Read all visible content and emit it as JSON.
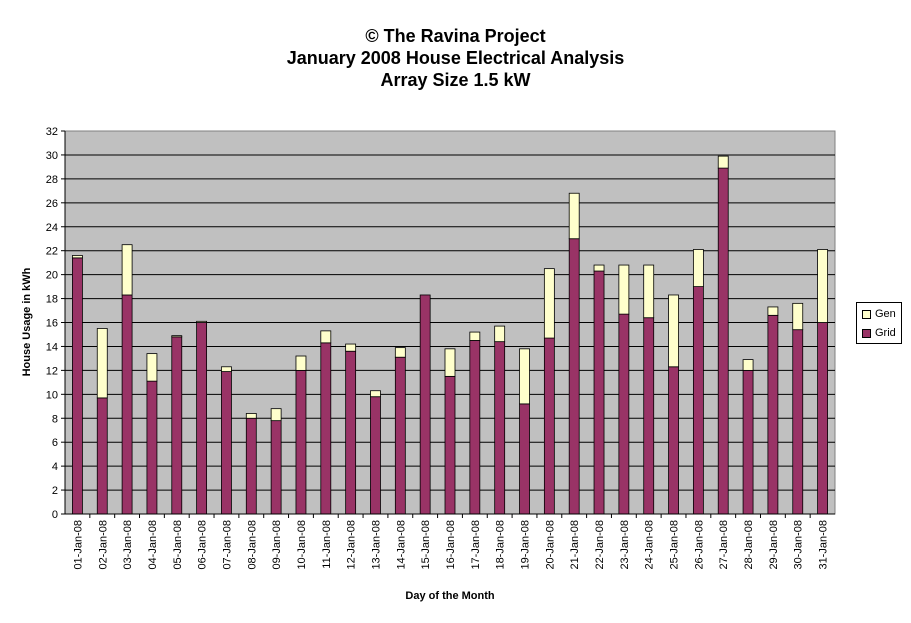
{
  "chart_data": {
    "type": "bar",
    "stacked": true,
    "title_lines": [
      "© The Ravina Project",
      "January 2008 House Electrical Analysis",
      "Array Size 1.5 kW"
    ],
    "xlabel": "Day of the Month",
    "ylabel": "House Usage in kWh",
    "ylim": [
      0,
      32
    ],
    "yticks": [
      0,
      2,
      4,
      6,
      8,
      10,
      12,
      14,
      16,
      18,
      20,
      22,
      24,
      26,
      28,
      30,
      32
    ],
    "grid": true,
    "legend_position": "right",
    "categories": [
      "01-Jan-08",
      "02-Jan-08",
      "03-Jan-08",
      "04-Jan-08",
      "05-Jan-08",
      "06-Jan-08",
      "07-Jan-08",
      "08-Jan-08",
      "09-Jan-08",
      "10-Jan-08",
      "11-Jan-08",
      "12-Jan-08",
      "13-Jan-08",
      "14-Jan-08",
      "15-Jan-08",
      "16-Jan-08",
      "17-Jan-08",
      "18-Jan-08",
      "19-Jan-08",
      "20-Jan-08",
      "21-Jan-08",
      "22-Jan-08",
      "23-Jan-08",
      "24-Jan-08",
      "25-Jan-08",
      "26-Jan-08",
      "27-Jan-08",
      "28-Jan-08",
      "29-Jan-08",
      "30-Jan-08",
      "31-Jan-08"
    ],
    "series": [
      {
        "name": "Grid",
        "color": "#993366",
        "values": [
          21.4,
          9.7,
          18.3,
          11.1,
          14.8,
          16.0,
          11.9,
          8.0,
          7.8,
          12.0,
          14.3,
          13.6,
          9.8,
          13.1,
          18.3,
          11.5,
          14.5,
          14.4,
          9.2,
          14.7,
          23.0,
          20.3,
          16.7,
          16.4,
          12.3,
          19.0,
          28.9,
          12.0,
          16.6,
          15.4,
          16.0
        ]
      },
      {
        "name": "Gen",
        "color": "#FFFFCC",
        "values": [
          0.2,
          5.8,
          4.2,
          2.3,
          0.1,
          0.1,
          0.4,
          0.4,
          1.0,
          1.2,
          1.0,
          0.6,
          0.5,
          0.8,
          0.0,
          2.3,
          0.7,
          1.3,
          4.6,
          5.8,
          3.8,
          0.5,
          4.1,
          4.4,
          6.0,
          3.1,
          1.0,
          0.9,
          0.7,
          2.2,
          6.1
        ]
      }
    ]
  }
}
